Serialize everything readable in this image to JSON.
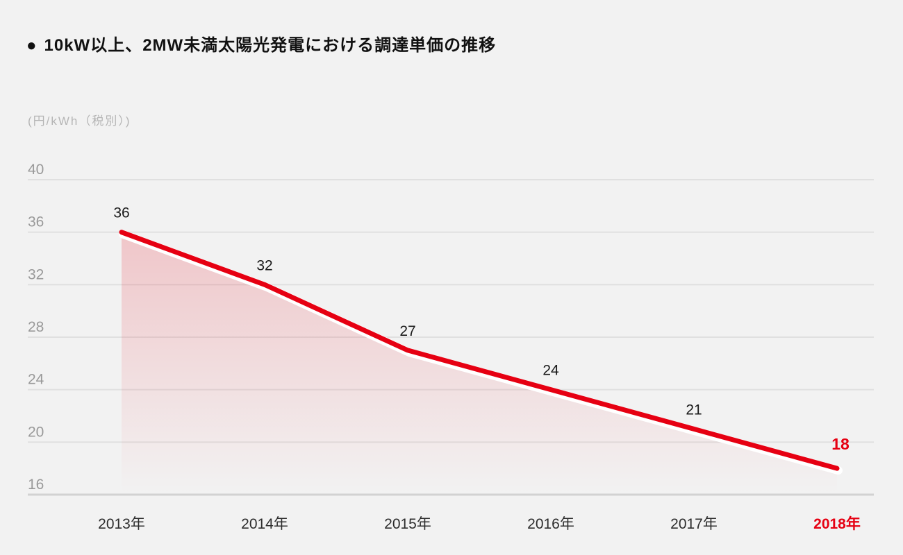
{
  "title": {
    "bullet": "●",
    "text": "10kW以上、2MW未満太陽光発電における調達単価の推移"
  },
  "chart_data": {
    "type": "area",
    "title": "10kW以上、2MW未満太陽光発電における調達単価の推移",
    "unit_label": "(円/kWh（税別）)",
    "categories": [
      "2013年",
      "2014年",
      "2015年",
      "2016年",
      "2017年",
      "2018年"
    ],
    "values": [
      36,
      32,
      27,
      24,
      21,
      18
    ],
    "data_labels": [
      "36",
      "32",
      "27",
      "24",
      "21",
      "18"
    ],
    "y_ticks": [
      40,
      36,
      32,
      28,
      24,
      20,
      16
    ],
    "ylim": [
      16,
      40
    ],
    "xlabel": "",
    "ylabel": "円/kWh（税別）",
    "grid": true,
    "legend_position": "none",
    "highlight_index": 5
  },
  "colors": {
    "background": "#f2f2f2",
    "line_red": "#e60012",
    "line_halo": "#ffffff",
    "area_top": "rgba(230,0,18,0.18)",
    "area_bottom": "rgba(230,0,18,0)",
    "gridline": "#e0e0e0",
    "baseline": "#d2d2d2",
    "tick_text": "#999999",
    "value_text": "#1a1a1a",
    "year_text": "#2d2d2d",
    "title_text": "#111111",
    "unit_text": "#b5b5b5",
    "highlight_text": "#e60012"
  }
}
